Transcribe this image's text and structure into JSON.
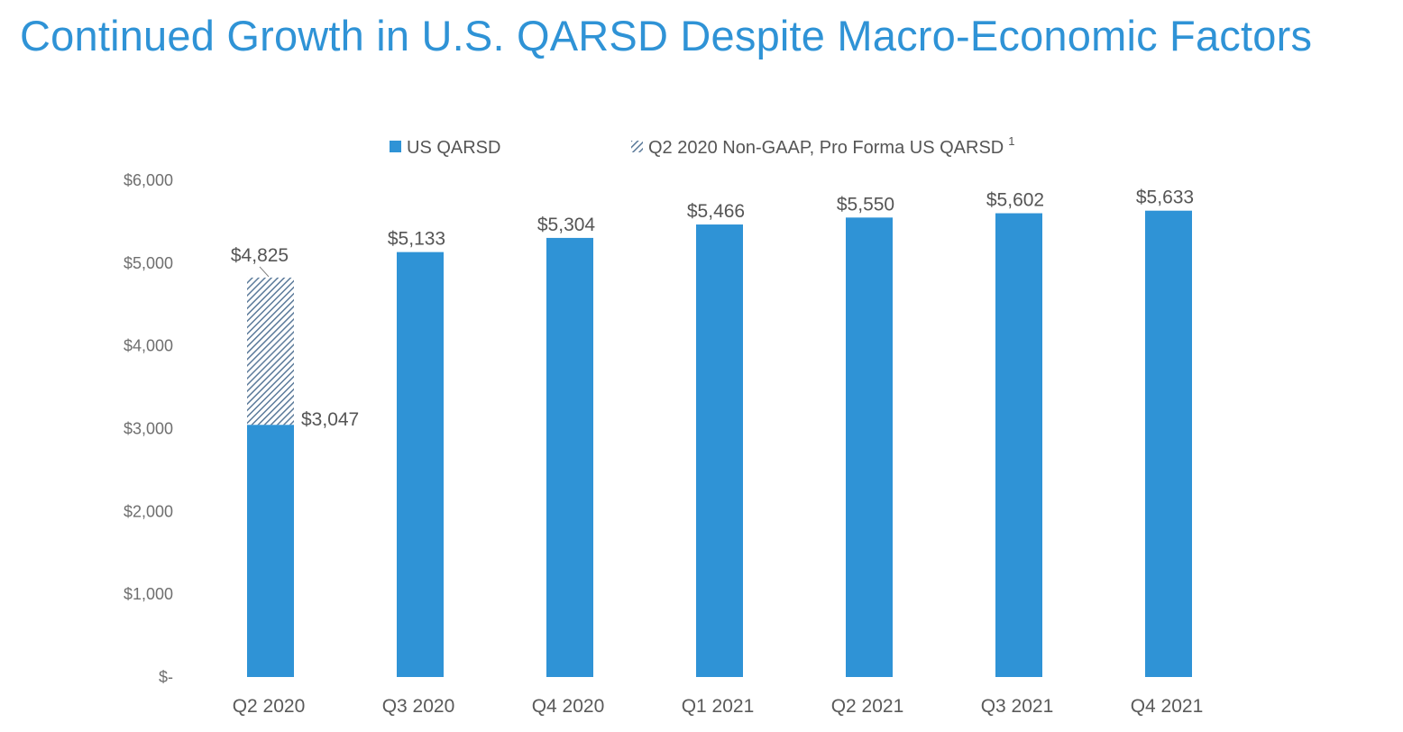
{
  "title": "Continued Growth in U.S. QARSD Despite Macro-Economic Factors",
  "colors": {
    "title": "#2f93d6",
    "bar": "#2f93d6",
    "hatch": "#5b7a9a",
    "text": "#555555"
  },
  "legend": {
    "items": [
      {
        "label": "US QARSD",
        "marker": "solid-square"
      },
      {
        "label": "Q2 2020 Non-GAAP, Pro Forma US QARSD",
        "superscript": "1",
        "marker": "hatched-square"
      }
    ]
  },
  "chart_data": {
    "type": "bar",
    "categories": [
      "Q2 2020",
      "Q3 2020",
      "Q4 2020",
      "Q1 2021",
      "Q2 2021",
      "Q3 2021",
      "Q4 2021"
    ],
    "series": [
      {
        "name": "US QARSD",
        "values": [
          3047,
          5133,
          5304,
          5466,
          5550,
          5602,
          5633
        ]
      },
      {
        "name": "Q2 2020 Non-GAAP, Pro Forma US QARSD",
        "values": [
          4825,
          null,
          null,
          null,
          null,
          null,
          null
        ]
      }
    ],
    "data_labels": [
      "$5,133",
      "$5,304",
      "$5,466",
      "$5,550",
      "$5,602",
      "$5,633"
    ],
    "q2_2020_labels": {
      "pro_forma": "$4,825",
      "gaap": "$3,047"
    },
    "yticks": [
      0,
      1000,
      2000,
      3000,
      4000,
      5000,
      6000
    ],
    "ytick_labels": [
      "$-",
      "$1,000",
      "$2,000",
      "$3,000",
      "$4,000",
      "$5,000",
      "$6,000"
    ],
    "ylim": [
      0,
      6000
    ],
    "grid": false,
    "legend_position": "top-center"
  }
}
